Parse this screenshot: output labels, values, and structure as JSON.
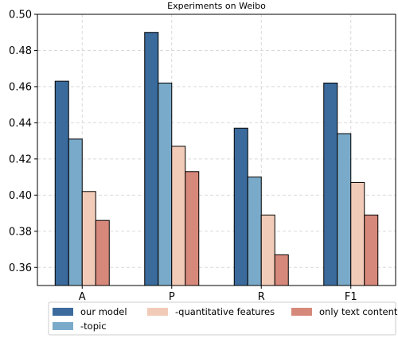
{
  "chart_data": {
    "type": "bar",
    "title": "Experiments on Weibo",
    "xlabel": "",
    "ylabel": "",
    "categories": [
      "A",
      "P",
      "R",
      "F1"
    ],
    "ylim": [
      0.35,
      0.5
    ],
    "yticks": [
      "0.36",
      "0.38",
      "0.40",
      "0.42",
      "0.44",
      "0.46",
      "0.48",
      "0.50"
    ],
    "grid": true,
    "legend_position": "bottom",
    "series": [
      {
        "name": "our model",
        "color": "#3a6b9c",
        "values": [
          0.463,
          0.49,
          0.437,
          0.462
        ]
      },
      {
        "name": "-topic",
        "color": "#7aaac9",
        "values": [
          0.431,
          0.462,
          0.41,
          0.434
        ]
      },
      {
        "name": "-quantitative features",
        "color": "#f2cbb8",
        "values": [
          0.402,
          0.427,
          0.389,
          0.407
        ]
      },
      {
        "name": "only text content",
        "color": "#d6897a",
        "values": [
          0.386,
          0.413,
          0.367,
          0.389
        ]
      }
    ]
  }
}
